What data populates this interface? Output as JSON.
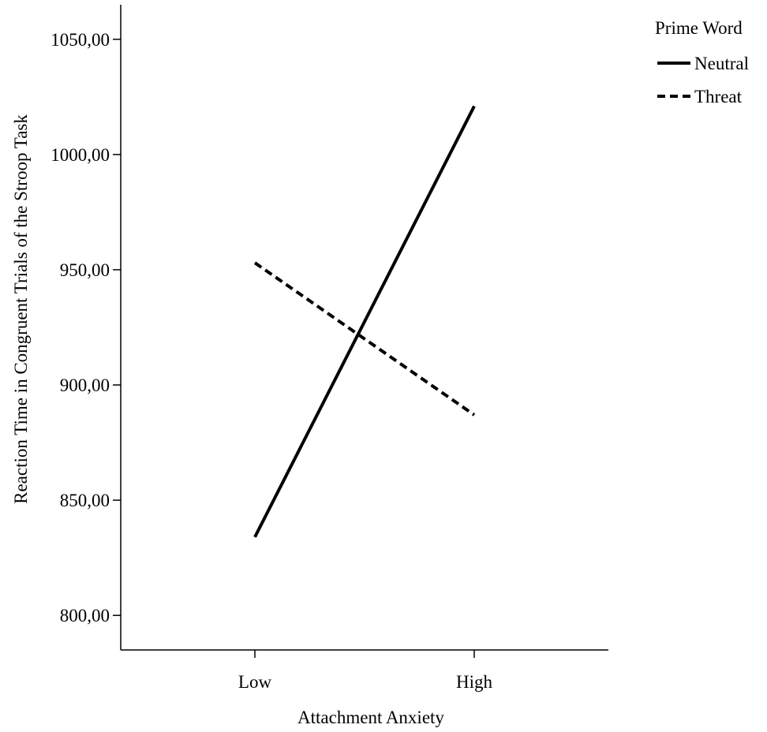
{
  "chart_data": {
    "type": "line",
    "title": "",
    "xlabel": "Attachment Anxiety",
    "ylabel": "Reaction Time in Congruent Trials of the Stroop Task",
    "categories": [
      "Low",
      "High"
    ],
    "ylim": [
      785,
      1065
    ],
    "yticks": [
      800,
      850,
      900,
      950,
      1000,
      1050
    ],
    "ytick_labels": [
      "800,00",
      "850,00",
      "900,00",
      "950,00",
      "1000,00",
      "1050,00"
    ],
    "grid": false,
    "legend": {
      "title": "Prime Word",
      "placement": "top-right, outside plot",
      "entries": [
        "Neutral",
        "Threat"
      ]
    },
    "series": [
      {
        "name": "Neutral",
        "values": [
          834,
          1021
        ],
        "line_style": "solid",
        "color": "#000000"
      },
      {
        "name": "Threat",
        "values": [
          953,
          887
        ],
        "line_style": "dashed",
        "color": "#000000"
      }
    ]
  }
}
